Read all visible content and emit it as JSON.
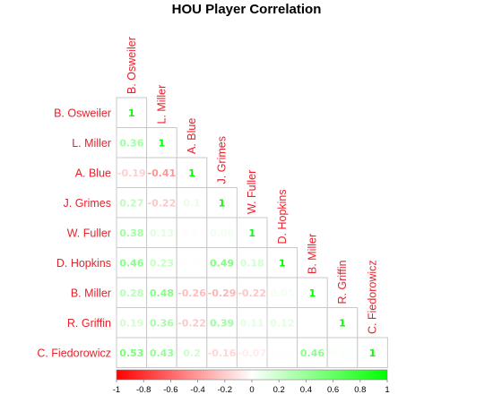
{
  "chart_data": {
    "type": "heatmap",
    "title": "HOU Player Correlation",
    "players": [
      "B. Osweiler",
      "L. Miller",
      "A. Blue",
      "J. Grimes",
      "W. Fuller",
      "D. Hopkins",
      "B. Miller",
      "R. Griffin",
      "C. Fiedorowicz"
    ],
    "values": [
      [
        "1"
      ],
      [
        "0.36",
        "1"
      ],
      [
        "-0.19",
        "-0.41",
        "1"
      ],
      [
        "0.27",
        "-0.22",
        "0.1",
        "1"
      ],
      [
        "0.38",
        "0.13",
        "-0.01",
        "0.06",
        "1"
      ],
      [
        "0.46",
        "0.23",
        "-0.01",
        "0.49",
        "0.18",
        "1"
      ],
      [
        "0.28",
        "0.48",
        "-0.26",
        "-0.29",
        "-0.22",
        "0.05",
        "1"
      ],
      [
        "0.19",
        "0.36",
        "-0.22",
        "0.39",
        "0.11",
        "0.12",
        "0.01",
        "1"
      ],
      [
        "0.53",
        "0.43",
        "0.2",
        "-0.16",
        "-0.07",
        "0.02",
        "0.46",
        "0.03",
        "1"
      ]
    ],
    "colorbar": {
      "ticks": [
        "-1",
        "-0.8",
        "-0.6",
        "-0.4",
        "-0.2",
        "0",
        "0.2",
        "0.4",
        "0.6",
        "0.8",
        "1"
      ],
      "range": [
        -1,
        1
      ],
      "low_color": "#ff0000",
      "mid_color": "#ffffff",
      "high_color": "#00ff00"
    },
    "label_color": "#e8212b"
  }
}
